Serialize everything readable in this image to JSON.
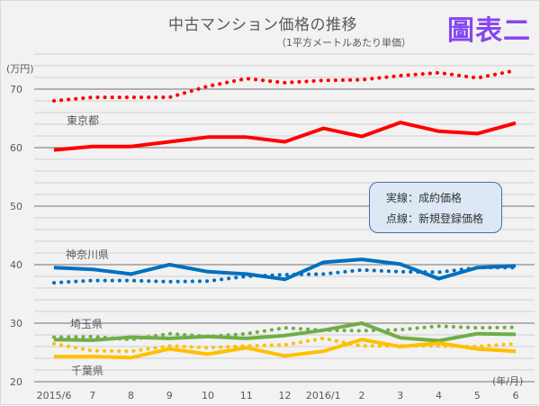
{
  "header": {
    "title": "中古マンション価格の推移",
    "subtitle": "（1平方メートルあたり単価）",
    "badge": "圖表二"
  },
  "legend": {
    "solid": "実線：成約価格",
    "dotted": "点線：新規登録価格"
  },
  "chart_data": {
    "type": "line",
    "title": "中古マンション価格の推移",
    "subtitle": "（1平方メートルあたり単価）",
    "xlabel": "(年/月)",
    "ylabel": "(万円)",
    "ylim": [
      20,
      76
    ],
    "yticks": [
      20,
      30,
      40,
      50,
      60,
      70
    ],
    "minor_grid_step": 2,
    "grid": true,
    "legend_placement": "center-right",
    "categories": [
      "2015/6",
      "7",
      "8",
      "9",
      "10",
      "11",
      "12",
      "2016/1",
      "2",
      "3",
      "4",
      "5",
      "6"
    ],
    "series": [
      {
        "name": "東京都 成約価格",
        "region": "東京都",
        "style": "solid",
        "color": "#FF0000",
        "values": [
          59.6,
          60.2,
          60.2,
          61.0,
          61.8,
          61.8,
          61.0,
          63.3,
          61.9,
          64.3,
          62.8,
          62.4,
          64.2
        ]
      },
      {
        "name": "東京都 新規登録価格",
        "region": "東京都",
        "style": "dotted",
        "color": "#FF0000",
        "values": [
          68.0,
          68.6,
          68.6,
          68.6,
          70.5,
          71.8,
          71.1,
          71.5,
          71.6,
          72.3,
          72.8,
          71.9,
          73.2
        ]
      },
      {
        "name": "神奈川県 成約価格",
        "region": "神奈川県",
        "style": "solid",
        "color": "#0070C0",
        "values": [
          39.5,
          39.2,
          38.4,
          40.0,
          38.8,
          38.4,
          37.5,
          40.4,
          40.9,
          40.1,
          37.6,
          39.5,
          39.8
        ]
      },
      {
        "name": "神奈川県 新規登録価格",
        "region": "神奈川県",
        "style": "dotted",
        "color": "#0070C0",
        "values": [
          36.9,
          37.3,
          37.3,
          37.1,
          37.2,
          38.0,
          38.3,
          38.4,
          39.1,
          38.8,
          38.7,
          39.5,
          39.5
        ]
      },
      {
        "name": "埼玉県 成約価格",
        "region": "埼玉県",
        "style": "solid",
        "color": "#70AD47",
        "values": [
          27.2,
          27.1,
          27.6,
          27.4,
          27.7,
          27.4,
          27.9,
          28.8,
          30.0,
          27.5,
          27.0,
          28.2,
          28.1
        ]
      },
      {
        "name": "埼玉県 新規登録価格",
        "region": "埼玉県",
        "style": "dotted",
        "color": "#70AD47",
        "values": [
          27.6,
          27.7,
          27.2,
          28.2,
          27.7,
          28.2,
          29.2,
          28.8,
          28.7,
          28.9,
          29.5,
          29.2,
          29.3
        ]
      },
      {
        "name": "千葉県 成約価格",
        "region": "千葉県",
        "style": "solid",
        "color": "#FFC000",
        "values": [
          24.3,
          24.3,
          24.1,
          25.6,
          24.7,
          25.8,
          24.4,
          25.2,
          27.2,
          26.0,
          26.6,
          25.6,
          25.2
        ]
      },
      {
        "name": "千葉県 新規登録価格",
        "region": "千葉県",
        "style": "dotted",
        "color": "#FFC000",
        "values": [
          26.5,
          25.3,
          25.2,
          26.1,
          25.8,
          26.1,
          26.3,
          27.4,
          26.1,
          26.1,
          26.1,
          26.0,
          26.5
        ]
      }
    ],
    "series_labels": [
      "東京都",
      "神奈川県",
      "埼玉県",
      "千葉県"
    ]
  }
}
